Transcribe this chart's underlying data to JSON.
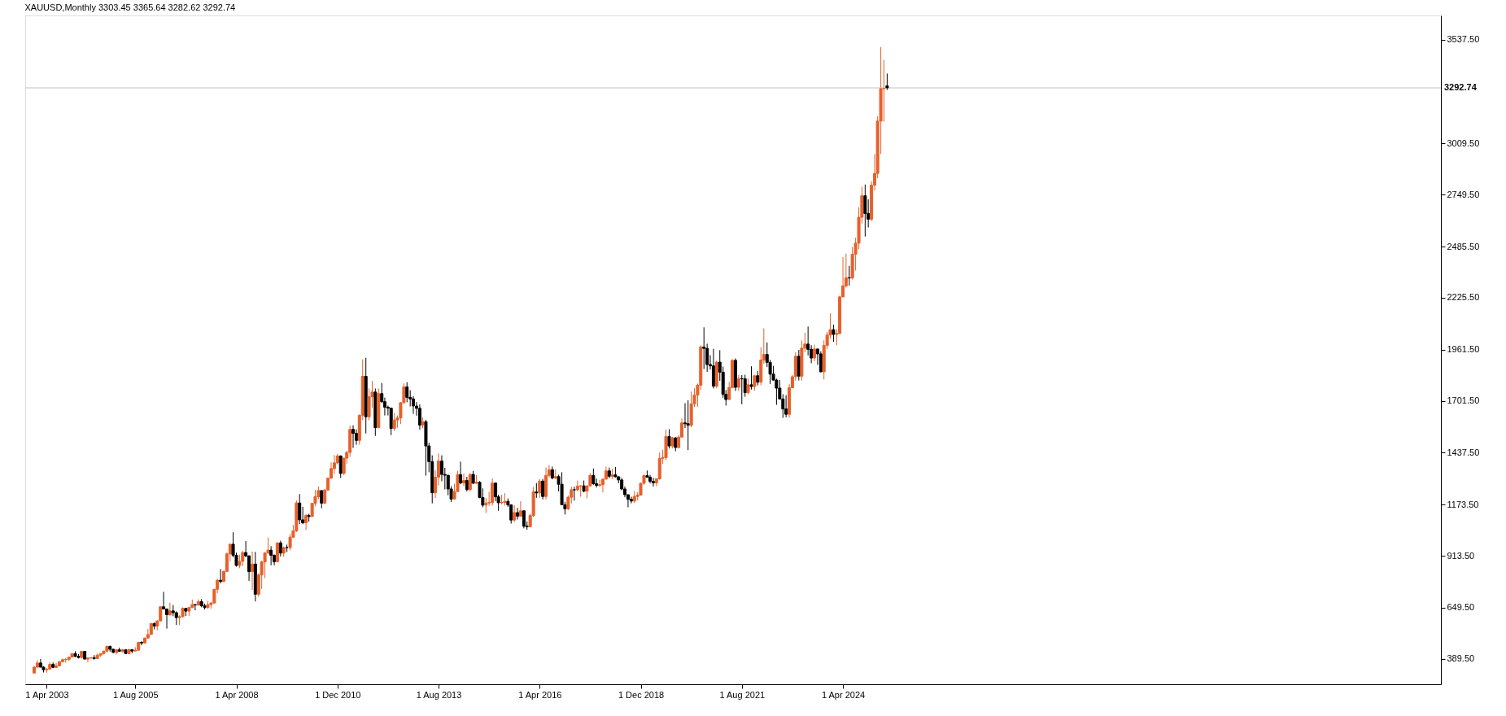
{
  "chart_data": {
    "type": "candlestick",
    "title": "XAUUSD,Monthly  3303.45 3365.64 3282.62 3292.74",
    "x": [
      "2002-12",
      "2003-01",
      "2003-02",
      "2003-03",
      "2003-04",
      "2003-05",
      "2003-06",
      "2003-07",
      "2003-08",
      "2003-09",
      "2003-10",
      "2003-11",
      "2003-12",
      "2004-01",
      "2004-02",
      "2004-03",
      "2004-04",
      "2004-05",
      "2004-06",
      "2004-07",
      "2004-08",
      "2004-09",
      "2004-10",
      "2004-11",
      "2004-12",
      "2005-01",
      "2005-02",
      "2005-03",
      "2005-04",
      "2005-05",
      "2005-06",
      "2005-07",
      "2005-08",
      "2005-09",
      "2005-10",
      "2005-11",
      "2005-12",
      "2006-01",
      "2006-02",
      "2006-03",
      "2006-04",
      "2006-05",
      "2006-06",
      "2006-07",
      "2006-08",
      "2006-09",
      "2006-10",
      "2006-11",
      "2006-12",
      "2007-01",
      "2007-02",
      "2007-03",
      "2007-04",
      "2007-05",
      "2007-06",
      "2007-07",
      "2007-08",
      "2007-09",
      "2007-10",
      "2007-11",
      "2007-12",
      "2008-01",
      "2008-02",
      "2008-03",
      "2008-04",
      "2008-05",
      "2008-06",
      "2008-07",
      "2008-08",
      "2008-09",
      "2008-10",
      "2008-11",
      "2008-12",
      "2009-01",
      "2009-02",
      "2009-03",
      "2009-04",
      "2009-05",
      "2009-06",
      "2009-07",
      "2009-08",
      "2009-09",
      "2009-10",
      "2009-11",
      "2009-12",
      "2010-01",
      "2010-02",
      "2010-03",
      "2010-04",
      "2010-05",
      "2010-06",
      "2010-07",
      "2010-08",
      "2010-09",
      "2010-10",
      "2010-11",
      "2010-12",
      "2011-01",
      "2011-02",
      "2011-03",
      "2011-04",
      "2011-05",
      "2011-06",
      "2011-07",
      "2011-08",
      "2011-09",
      "2011-10",
      "2011-11",
      "2011-12",
      "2012-01",
      "2012-02",
      "2012-03",
      "2012-04",
      "2012-05",
      "2012-06",
      "2012-07",
      "2012-08",
      "2012-09",
      "2012-10",
      "2012-11",
      "2012-12",
      "2013-01",
      "2013-02",
      "2013-03",
      "2013-04",
      "2013-05",
      "2013-06",
      "2013-07",
      "2013-08",
      "2013-09",
      "2013-10",
      "2013-11",
      "2013-12",
      "2014-01",
      "2014-02",
      "2014-03",
      "2014-04",
      "2014-05",
      "2014-06",
      "2014-07",
      "2014-08",
      "2014-09",
      "2014-10",
      "2014-11",
      "2014-12",
      "2015-01",
      "2015-02",
      "2015-03",
      "2015-04",
      "2015-05",
      "2015-06",
      "2015-07",
      "2015-08",
      "2015-09",
      "2015-10",
      "2015-11",
      "2015-12",
      "2016-01",
      "2016-02",
      "2016-03",
      "2016-04",
      "2016-05",
      "2016-06",
      "2016-07",
      "2016-08",
      "2016-09",
      "2016-10",
      "2016-11",
      "2016-12",
      "2017-01",
      "2017-02",
      "2017-03",
      "2017-04",
      "2017-05",
      "2017-06",
      "2017-07",
      "2017-08",
      "2017-09",
      "2017-10",
      "2017-11",
      "2017-12",
      "2018-01",
      "2018-02",
      "2018-03",
      "2018-04",
      "2018-05",
      "2018-06",
      "2018-07",
      "2018-08",
      "2018-09",
      "2018-10",
      "2018-11",
      "2018-12",
      "2019-01",
      "2019-02",
      "2019-03",
      "2019-04",
      "2019-05",
      "2019-06",
      "2019-07",
      "2019-08",
      "2019-09",
      "2019-10",
      "2019-11",
      "2019-12",
      "2020-01",
      "2020-02",
      "2020-03",
      "2020-04",
      "2020-05",
      "2020-06",
      "2020-07",
      "2020-08",
      "2020-09",
      "2020-10",
      "2020-11",
      "2020-12",
      "2021-01",
      "2021-02",
      "2021-03",
      "2021-04",
      "2021-05",
      "2021-06",
      "2021-07",
      "2021-08",
      "2021-09",
      "2021-10",
      "2021-11",
      "2021-12",
      "2022-01",
      "2022-02",
      "2022-03",
      "2022-04",
      "2022-05",
      "2022-06",
      "2022-07",
      "2022-08",
      "2022-09",
      "2022-10",
      "2022-11",
      "2022-12",
      "2023-01",
      "2023-02",
      "2023-03",
      "2023-04",
      "2023-05",
      "2023-06",
      "2023-07",
      "2023-08",
      "2023-09",
      "2023-10",
      "2023-11",
      "2023-12",
      "2024-01",
      "2024-02",
      "2024-03",
      "2024-04",
      "2024-05",
      "2024-06",
      "2024-07",
      "2024-08",
      "2024-09",
      "2024-10",
      "2024-11",
      "2024-12",
      "2025-01",
      "2025-02",
      "2025-03",
      "2025-04",
      "2025-05",
      "2025-06"
    ],
    "ohlc": [
      [
        317,
        354,
        316,
        347
      ],
      [
        347,
        383,
        342,
        368
      ],
      [
        368,
        389,
        346,
        347
      ],
      [
        347,
        352,
        320,
        334
      ],
      [
        334,
        342,
        319,
        337
      ],
      [
        337,
        372,
        335,
        361
      ],
      [
        361,
        371,
        342,
        346
      ],
      [
        346,
        368,
        342,
        354
      ],
      [
        354,
        377,
        353,
        375
      ],
      [
        375,
        391,
        371,
        385
      ],
      [
        385,
        394,
        370,
        386
      ],
      [
        386,
        400,
        378,
        398
      ],
      [
        398,
        417,
        397,
        416
      ],
      [
        416,
        428,
        398,
        402
      ],
      [
        402,
        414,
        391,
        396
      ],
      [
        396,
        430,
        392,
        427
      ],
      [
        427,
        429,
        387,
        388
      ],
      [
        388,
        395,
        371,
        394
      ],
      [
        394,
        398,
        387,
        395
      ],
      [
        395,
        408,
        385,
        391
      ],
      [
        391,
        416,
        388,
        408
      ],
      [
        408,
        417,
        399,
        416
      ],
      [
        416,
        430,
        411,
        429
      ],
      [
        429,
        456,
        422,
        453
      ],
      [
        453,
        456,
        426,
        438
      ],
      [
        438,
        440,
        418,
        422
      ],
      [
        422,
        439,
        411,
        435
      ],
      [
        435,
        446,
        425,
        428
      ],
      [
        428,
        439,
        421,
        435
      ],
      [
        435,
        437,
        414,
        416
      ],
      [
        416,
        441,
        414,
        436
      ],
      [
        436,
        437,
        418,
        429
      ],
      [
        429,
        449,
        428,
        433
      ],
      [
        433,
        476,
        433,
        473
      ],
      [
        473,
        479,
        458,
        470
      ],
      [
        470,
        497,
        468,
        495
      ],
      [
        495,
        541,
        491,
        513
      ],
      [
        513,
        572,
        512,
        569
      ],
      [
        569,
        574,
        539,
        556
      ],
      [
        556,
        585,
        535,
        582
      ],
      [
        582,
        654,
        581,
        654
      ],
      [
        654,
        730,
        643,
        643
      ],
      [
        643,
        644,
        543,
        614
      ],
      [
        614,
        675,
        608,
        633
      ],
      [
        633,
        663,
        606,
        624
      ],
      [
        624,
        631,
        561,
        599
      ],
      [
        599,
        611,
        560,
        604
      ],
      [
        604,
        651,
        600,
        646
      ],
      [
        646,
        647,
        607,
        632
      ],
      [
        632,
        653,
        607,
        650
      ],
      [
        650,
        691,
        648,
        665
      ],
      [
        665,
        669,
        636,
        663
      ],
      [
        663,
        692,
        660,
        680
      ],
      [
        680,
        693,
        652,
        659
      ],
      [
        659,
        670,
        640,
        650
      ],
      [
        650,
        684,
        644,
        665
      ],
      [
        665,
        678,
        644,
        673
      ],
      [
        673,
        745,
        672,
        743
      ],
      [
        743,
        796,
        723,
        789
      ],
      [
        789,
        846,
        773,
        783
      ],
      [
        783,
        838,
        779,
        834
      ],
      [
        834,
        930,
        832,
        923
      ],
      [
        923,
        976,
        886,
        972
      ],
      [
        972,
        1033,
        905,
        916
      ],
      [
        916,
        929,
        858,
        864
      ],
      [
        864,
        919,
        850,
        885
      ],
      [
        885,
        938,
        861,
        930
      ],
      [
        930,
        988,
        906,
        913
      ],
      [
        913,
        915,
        786,
        833
      ],
      [
        833,
        935,
        740,
        871
      ],
      [
        871,
        933,
        681,
        718
      ],
      [
        718,
        825,
        705,
        816
      ],
      [
        816,
        888,
        745,
        882
      ],
      [
        882,
        932,
        800,
        928
      ],
      [
        928,
        1006,
        922,
        942
      ],
      [
        942,
        962,
        865,
        916
      ],
      [
        916,
        920,
        865,
        883
      ],
      [
        883,
        982,
        882,
        979
      ],
      [
        979,
        990,
        910,
        927
      ],
      [
        927,
        960,
        908,
        955
      ],
      [
        955,
        970,
        932,
        955
      ],
      [
        955,
        1024,
        941,
        1008
      ],
      [
        1008,
        1070,
        1003,
        1040
      ],
      [
        1040,
        1195,
        1034,
        1182
      ],
      [
        1182,
        1227,
        1075,
        1096
      ],
      [
        1096,
        1162,
        1074,
        1081
      ],
      [
        1081,
        1126,
        1044,
        1118
      ],
      [
        1118,
        1127,
        1087,
        1113
      ],
      [
        1113,
        1181,
        1113,
        1180
      ],
      [
        1180,
        1249,
        1165,
        1214
      ],
      [
        1214,
        1266,
        1201,
        1245
      ],
      [
        1245,
        1246,
        1155,
        1181
      ],
      [
        1181,
        1253,
        1177,
        1248
      ],
      [
        1248,
        1310,
        1244,
        1308
      ],
      [
        1308,
        1388,
        1305,
        1357
      ],
      [
        1357,
        1425,
        1329,
        1386
      ],
      [
        1386,
        1432,
        1378,
        1421
      ],
      [
        1421,
        1424,
        1309,
        1332
      ],
      [
        1332,
        1412,
        1324,
        1410
      ],
      [
        1410,
        1447,
        1381,
        1439
      ],
      [
        1439,
        1576,
        1417,
        1556
      ],
      [
        1556,
        1577,
        1462,
        1536
      ],
      [
        1536,
        1556,
        1478,
        1500
      ],
      [
        1500,
        1632,
        1478,
        1628
      ],
      [
        1628,
        1912,
        1603,
        1826
      ],
      [
        1826,
        1920,
        1535,
        1620
      ],
      [
        1620,
        1764,
        1603,
        1722
      ],
      [
        1722,
        1803,
        1665,
        1746
      ],
      [
        1746,
        1764,
        1523,
        1565
      ],
      [
        1565,
        1764,
        1562,
        1738
      ],
      [
        1738,
        1792,
        1690,
        1697
      ],
      [
        1697,
        1718,
        1627,
        1669
      ],
      [
        1669,
        1677,
        1627,
        1664
      ],
      [
        1664,
        1667,
        1527,
        1561
      ],
      [
        1561,
        1640,
        1548,
        1604
      ],
      [
        1604,
        1627,
        1565,
        1614
      ],
      [
        1614,
        1694,
        1583,
        1692
      ],
      [
        1692,
        1790,
        1686,
        1772
      ],
      [
        1772,
        1796,
        1694,
        1719
      ],
      [
        1719,
        1755,
        1673,
        1711
      ],
      [
        1711,
        1725,
        1635,
        1675
      ],
      [
        1675,
        1695,
        1626,
        1663
      ],
      [
        1663,
        1683,
        1555,
        1578
      ],
      [
        1578,
        1617,
        1562,
        1595
      ],
      [
        1595,
        1605,
        1321,
        1472
      ],
      [
        1472,
        1488,
        1338,
        1392
      ],
      [
        1392,
        1424,
        1180,
        1234
      ],
      [
        1234,
        1348,
        1207,
        1313
      ],
      [
        1313,
        1434,
        1271,
        1395
      ],
      [
        1395,
        1424,
        1292,
        1327
      ],
      [
        1327,
        1361,
        1251,
        1323
      ],
      [
        1323,
        1324,
        1221,
        1253
      ],
      [
        1253,
        1267,
        1187,
        1202
      ],
      [
        1202,
        1280,
        1200,
        1240
      ],
      [
        1240,
        1345,
        1238,
        1326
      ],
      [
        1326,
        1392,
        1277,
        1284
      ],
      [
        1284,
        1331,
        1268,
        1296
      ],
      [
        1296,
        1315,
        1240,
        1250
      ],
      [
        1250,
        1332,
        1240,
        1327
      ],
      [
        1327,
        1345,
        1281,
        1282
      ],
      [
        1282,
        1323,
        1280,
        1287
      ],
      [
        1287,
        1293,
        1206,
        1210
      ],
      [
        1210,
        1256,
        1160,
        1171
      ],
      [
        1171,
        1208,
        1131,
        1182
      ],
      [
        1182,
        1239,
        1166,
        1184
      ],
      [
        1184,
        1307,
        1168,
        1283
      ],
      [
        1283,
        1284,
        1191,
        1213
      ],
      [
        1213,
        1224,
        1142,
        1183
      ],
      [
        1183,
        1224,
        1175,
        1184
      ],
      [
        1184,
        1232,
        1168,
        1190
      ],
      [
        1190,
        1205,
        1162,
        1172
      ],
      [
        1172,
        1175,
        1077,
        1095
      ],
      [
        1095,
        1170,
        1085,
        1133
      ],
      [
        1133,
        1157,
        1098,
        1115
      ],
      [
        1115,
        1191,
        1113,
        1142
      ],
      [
        1142,
        1144,
        1053,
        1064
      ],
      [
        1064,
        1088,
        1046,
        1061
      ],
      [
        1061,
        1128,
        1060,
        1118
      ],
      [
        1118,
        1263,
        1111,
        1238
      ],
      [
        1238,
        1283,
        1208,
        1233
      ],
      [
        1233,
        1304,
        1208,
        1293
      ],
      [
        1293,
        1304,
        1200,
        1215
      ],
      [
        1215,
        1362,
        1200,
        1322
      ],
      [
        1322,
        1375,
        1311,
        1351
      ],
      [
        1351,
        1367,
        1302,
        1309
      ],
      [
        1309,
        1353,
        1303,
        1316
      ],
      [
        1316,
        1326,
        1241,
        1277
      ],
      [
        1277,
        1338,
        1171,
        1173
      ],
      [
        1173,
        1188,
        1123,
        1152
      ],
      [
        1152,
        1220,
        1146,
        1211
      ],
      [
        1211,
        1264,
        1180,
        1249
      ],
      [
        1249,
        1264,
        1194,
        1249
      ],
      [
        1249,
        1296,
        1241,
        1268
      ],
      [
        1268,
        1272,
        1214,
        1269
      ],
      [
        1269,
        1296,
        1236,
        1242
      ],
      [
        1242,
        1270,
        1205,
        1269
      ],
      [
        1269,
        1332,
        1266,
        1322
      ],
      [
        1322,
        1357,
        1274,
        1280
      ],
      [
        1280,
        1306,
        1261,
        1271
      ],
      [
        1271,
        1299,
        1264,
        1275
      ],
      [
        1275,
        1306,
        1236,
        1303
      ],
      [
        1303,
        1366,
        1302,
        1345
      ],
      [
        1345,
        1362,
        1307,
        1318
      ],
      [
        1318,
        1356,
        1303,
        1325
      ],
      [
        1325,
        1365,
        1312,
        1315
      ],
      [
        1315,
        1317,
        1282,
        1299
      ],
      [
        1299,
        1309,
        1246,
        1253
      ],
      [
        1253,
        1266,
        1211,
        1224
      ],
      [
        1224,
        1224,
        1160,
        1201
      ],
      [
        1201,
        1214,
        1180,
        1192
      ],
      [
        1192,
        1243,
        1182,
        1215
      ],
      [
        1215,
        1237,
        1196,
        1222
      ],
      [
        1222,
        1284,
        1221,
        1282
      ],
      [
        1282,
        1326,
        1276,
        1321
      ],
      [
        1321,
        1347,
        1310,
        1313
      ],
      [
        1313,
        1324,
        1281,
        1292
      ],
      [
        1292,
        1310,
        1266,
        1284
      ],
      [
        1284,
        1306,
        1267,
        1305
      ],
      [
        1305,
        1439,
        1300,
        1409
      ],
      [
        1409,
        1453,
        1381,
        1413
      ],
      [
        1413,
        1555,
        1400,
        1520
      ],
      [
        1520,
        1557,
        1459,
        1472
      ],
      [
        1472,
        1518,
        1459,
        1513
      ],
      [
        1513,
        1516,
        1445,
        1464
      ],
      [
        1464,
        1526,
        1459,
        1517
      ],
      [
        1517,
        1611,
        1516,
        1589
      ],
      [
        1589,
        1689,
        1563,
        1585
      ],
      [
        1585,
        1704,
        1451,
        1577
      ],
      [
        1577,
        1748,
        1567,
        1686
      ],
      [
        1686,
        1765,
        1670,
        1730
      ],
      [
        1730,
        1789,
        1671,
        1781
      ],
      [
        1781,
        1984,
        1757,
        1975
      ],
      [
        1975,
        2075,
        1863,
        1968
      ],
      [
        1968,
        1992,
        1849,
        1886
      ],
      [
        1886,
        1933,
        1860,
        1879
      ],
      [
        1879,
        1966,
        1764,
        1776
      ],
      [
        1776,
        1906,
        1766,
        1898
      ],
      [
        1898,
        1959,
        1803,
        1847
      ],
      [
        1847,
        1875,
        1717,
        1734
      ],
      [
        1734,
        1756,
        1677,
        1708
      ],
      [
        1708,
        1798,
        1706,
        1769
      ],
      [
        1769,
        1913,
        1766,
        1907
      ],
      [
        1907,
        1917,
        1751,
        1770
      ],
      [
        1770,
        1833,
        1751,
        1814
      ],
      [
        1814,
        1832,
        1684,
        1813
      ],
      [
        1813,
        1834,
        1722,
        1743
      ],
      [
        1743,
        1814,
        1734,
        1783
      ],
      [
        1783,
        1877,
        1759,
        1774
      ],
      [
        1774,
        1831,
        1753,
        1829
      ],
      [
        1829,
        1853,
        1780,
        1796
      ],
      [
        1796,
        1974,
        1780,
        1909
      ],
      [
        1909,
        2070,
        1890,
        1937
      ],
      [
        1937,
        1998,
        1873,
        1897
      ],
      [
        1897,
        1910,
        1787,
        1837
      ],
      [
        1837,
        1879,
        1805,
        1807
      ],
      [
        1807,
        1814,
        1681,
        1766
      ],
      [
        1766,
        1807,
        1709,
        1711
      ],
      [
        1711,
        1735,
        1615,
        1660
      ],
      [
        1660,
        1730,
        1617,
        1633
      ],
      [
        1633,
        1786,
        1616,
        1768
      ],
      [
        1768,
        1833,
        1765,
        1824
      ],
      [
        1824,
        1949,
        1804,
        1928
      ],
      [
        1928,
        1960,
        1805,
        1827
      ],
      [
        1827,
        2009,
        1804,
        1969
      ],
      [
        1969,
        2048,
        1949,
        1990
      ],
      [
        1990,
        2079,
        1932,
        1963
      ],
      [
        1963,
        1984,
        1893,
        1919
      ],
      [
        1919,
        1987,
        1903,
        1965
      ],
      [
        1965,
        1966,
        1884,
        1940
      ],
      [
        1940,
        1953,
        1846,
        1849
      ],
      [
        1849,
        2009,
        1810,
        1983
      ],
      [
        1983,
        2052,
        1965,
        2036
      ],
      [
        2036,
        2146,
        2017,
        2063
      ],
      [
        2063,
        2088,
        2002,
        2039
      ],
      [
        2039,
        2065,
        1984,
        2044
      ],
      [
        2044,
        2236,
        2039,
        2230
      ],
      [
        2230,
        2432,
        2228,
        2286
      ],
      [
        2286,
        2450,
        2277,
        2327
      ],
      [
        2327,
        2388,
        2287,
        2326
      ],
      [
        2326,
        2484,
        2318,
        2447
      ],
      [
        2447,
        2531,
        2364,
        2503
      ],
      [
        2503,
        2686,
        2472,
        2635
      ],
      [
        2635,
        2790,
        2603,
        2744
      ],
      [
        2744,
        2801,
        2537,
        2654
      ],
      [
        2654,
        2726,
        2583,
        2625
      ],
      [
        2625,
        2817,
        2615,
        2798
      ],
      [
        2798,
        2956,
        2772,
        2858
      ],
      [
        2858,
        3148,
        2833,
        3124
      ],
      [
        3124,
        3500,
        2957,
        3289
      ],
      [
        3289,
        3435,
        3121,
        3290
      ],
      [
        3303.45,
        3365.64,
        3282.62,
        3292.74
      ]
    ],
    "colors": [
      "#e6602a",
      "#e6602a",
      "#000000",
      "#000000",
      "#e6602a",
      "#e6602a",
      "#000000",
      "#e6602a",
      "#e6602a",
      "#e6602a",
      "#e6602a",
      "#e6602a",
      "#e6602a",
      "#000000",
      "#000000",
      "#e6602a",
      "#000000",
      "#e6602a",
      "#e6602a",
      "#000000",
      "#e6602a",
      "#e6602a",
      "#e6602a",
      "#e6602a",
      "#000000",
      "#000000",
      "#e6602a",
      "#000000",
      "#e6602a",
      "#000000",
      "#e6602a",
      "#000000",
      "#e6602a",
      "#e6602a",
      "#000000",
      "#e6602a",
      "#e6602a",
      "#e6602a",
      "#000000",
      "#e6602a",
      "#e6602a",
      "#000000",
      "#000000",
      "#e6602a",
      "#000000",
      "#000000",
      "#e6602a",
      "#e6602a",
      "#000000",
      "#e6602a",
      "#e6602a",
      "#000000",
      "#e6602a",
      "#000000",
      "#000000",
      "#e6602a",
      "#e6602a",
      "#e6602a",
      "#e6602a",
      "#000000",
      "#e6602a",
      "#e6602a",
      "#e6602a",
      "#000000",
      "#000000",
      "#e6602a",
      "#e6602a",
      "#000000",
      "#000000",
      "#e6602a",
      "#000000",
      "#e6602a",
      "#e6602a",
      "#e6602a",
      "#e6602a",
      "#000000",
      "#000000",
      "#e6602a",
      "#000000",
      "#e6602a",
      "#000000",
      "#e6602a",
      "#e6602a",
      "#e6602a",
      "#000000",
      "#000000",
      "#e6602a",
      "#000000",
      "#e6602a",
      "#e6602a",
      "#e6602a",
      "#000000",
      "#e6602a",
      "#e6602a",
      "#e6602a",
      "#e6602a",
      "#e6602a",
      "#000000",
      "#e6602a",
      "#e6602a",
      "#e6602a",
      "#000000",
      "#000000",
      "#e6602a",
      "#e6602a",
      "#000000",
      "#e6602a",
      "#e6602a",
      "#000000",
      "#e6602a",
      "#000000",
      "#000000",
      "#000000",
      "#000000",
      "#e6602a",
      "#e6602a",
      "#e6602a",
      "#e6602a",
      "#000000",
      "#000000",
      "#000000",
      "#000000",
      "#000000",
      "#e6602a",
      "#000000",
      "#000000",
      "#000000",
      "#e6602a",
      "#e6602a",
      "#000000",
      "#000000",
      "#000000",
      "#000000",
      "#e6602a",
      "#e6602a",
      "#000000",
      "#e6602a",
      "#000000",
      "#e6602a",
      "#000000",
      "#e6602a",
      "#000000",
      "#000000",
      "#e6602a",
      "#e6602a",
      "#e6602a",
      "#000000",
      "#000000",
      "#e6602a",
      "#e6602a",
      "#000000",
      "#000000",
      "#e6602a",
      "#000000",
      "#e6602a",
      "#000000",
      "#000000",
      "#e6602a",
      "#e6602a",
      "#000000",
      "#e6602a",
      "#000000",
      "#e6602a",
      "#e6602a",
      "#000000",
      "#e6602a",
      "#000000",
      "#000000",
      "#000000",
      "#e6602a",
      "#e6602a",
      "#000000",
      "#e6602a",
      "#e6602a",
      "#000000",
      "#e6602a",
      "#e6602a",
      "#000000",
      "#000000",
      "#e6602a",
      "#e6602a",
      "#e6602a",
      "#000000",
      "#e6602a",
      "#000000",
      "#000000",
      "#000000",
      "#000000",
      "#000000",
      "#000000",
      "#e6602a",
      "#e6602a",
      "#e6602a",
      "#e6602a",
      "#000000",
      "#000000",
      "#000000",
      "#e6602a",
      "#e6602a",
      "#e6602a",
      "#e6602a",
      "#000000",
      "#e6602a",
      "#000000",
      "#e6602a",
      "#e6602a",
      "#000000",
      "#000000",
      "#e6602a",
      "#e6602a",
      "#e6602a",
      "#e6602a",
      "#000000",
      "#000000",
      "#000000",
      "#000000",
      "#e6602a",
      "#000000",
      "#000000",
      "#000000",
      "#e6602a",
      "#e6602a",
      "#000000",
      "#e6602a",
      "#000000",
      "#000000",
      "#e6602a",
      "#000000",
      "#e6602a",
      "#000000",
      "#e6602a",
      "#e6602a",
      "#000000",
      "#000000",
      "#000000",
      "#000000",
      "#000000",
      "#000000",
      "#000000",
      "#e6602a",
      "#e6602a",
      "#e6602a",
      "#000000",
      "#e6602a",
      "#e6602a",
      "#000000",
      "#000000",
      "#e6602a",
      "#000000",
      "#000000",
      "#e6602a",
      "#e6602a",
      "#e6602a",
      "#000000",
      "#e6602a",
      "#e6602a",
      "#e6602a",
      "#e6602a",
      "#000000",
      "#e6602a",
      "#e6602a",
      "#e6602a",
      "#e6602a",
      "#000000",
      "#000000",
      "#e6602a",
      "#e6602a",
      "#e6602a",
      "#e6602a",
      "#e6602a",
      "#000000"
    ],
    "xlim": [
      "2002-10-15",
      "2039-12"
    ],
    "xticks": [
      {
        "value": "2003-04",
        "label": "1 Apr 2003"
      },
      {
        "value": "2005-08",
        "label": "1 Aug 2005"
      },
      {
        "value": "2008-04",
        "label": "1 Apr 2008"
      },
      {
        "value": "2010-12",
        "label": "1 Dec 2010"
      },
      {
        "value": "2013-08",
        "label": "1 Aug 2013"
      },
      {
        "value": "2016-04",
        "label": "1 Apr 2016"
      },
      {
        "value": "2018-12",
        "label": "1 Dec 2018"
      },
      {
        "value": "2021-08",
        "label": "1 Aug 2021"
      },
      {
        "value": "2024-04",
        "label": "1 Apr 2024"
      }
    ],
    "ylim": [
      260,
      3661
    ],
    "yticks": [
      {
        "value": 389.5,
        "label": "389.50"
      },
      {
        "value": 649.5,
        "label": "649.50"
      },
      {
        "value": 913.5,
        "label": "913.50"
      },
      {
        "value": 1173.5,
        "label": "1173.50"
      },
      {
        "value": 1437.5,
        "label": "1437.50"
      },
      {
        "value": 1701.5,
        "label": "1701.50"
      },
      {
        "value": 1961.5,
        "label": "1961.50"
      },
      {
        "value": 2225.5,
        "label": "2225.50"
      },
      {
        "value": 2485.5,
        "label": "2485.50"
      },
      {
        "value": 2749.5,
        "label": "2749.50"
      },
      {
        "value": 3009.5,
        "label": "3009.50"
      },
      {
        "value": 3537.5,
        "label": "3537.50"
      }
    ],
    "ref_lines": [
      {
        "axis": "y",
        "value": 3292.74,
        "label": "3292.74",
        "color": "#c0c0c0"
      }
    ]
  }
}
